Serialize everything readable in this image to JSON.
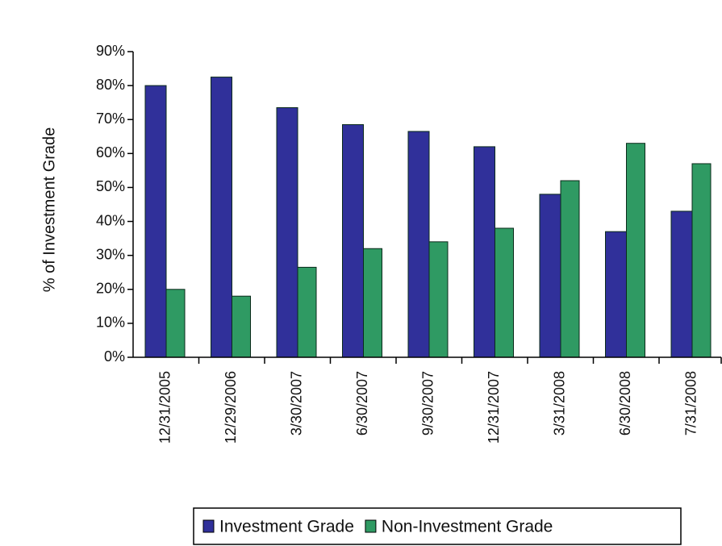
{
  "chart_data": {
    "type": "bar",
    "y_axis_label": "% of Investment Grade",
    "categories": [
      "12/31/2005",
      "12/29/2006",
      "3/30/2007",
      "6/30/2007",
      "9/30/2007",
      "12/31/2007",
      "3/31/2008",
      "6/30/2008",
      "7/31/2008"
    ],
    "series": [
      {
        "name": "Investment Grade",
        "color": "#30309a",
        "values": [
          80,
          82.5,
          73.5,
          68.5,
          66.5,
          62,
          48,
          37,
          43
        ]
      },
      {
        "name": "Non-Investment Grade",
        "color": "#2f9a63",
        "values": [
          20,
          18,
          26.5,
          32,
          34,
          38,
          52,
          63,
          57
        ]
      }
    ],
    "ylim": [
      0,
      90
    ],
    "yticks": [
      {
        "value": 0,
        "label": "0%"
      },
      {
        "value": 10,
        "label": "10%"
      },
      {
        "value": 20,
        "label": "20%"
      },
      {
        "value": 30,
        "label": "30%"
      },
      {
        "value": 40,
        "label": "40%"
      },
      {
        "value": 50,
        "label": "50%"
      },
      {
        "value": 60,
        "label": "60%"
      },
      {
        "value": 70,
        "label": "70%"
      },
      {
        "value": 80,
        "label": "80%"
      },
      {
        "value": 90,
        "label": "90%"
      }
    ],
    "legend": "bottom"
  }
}
